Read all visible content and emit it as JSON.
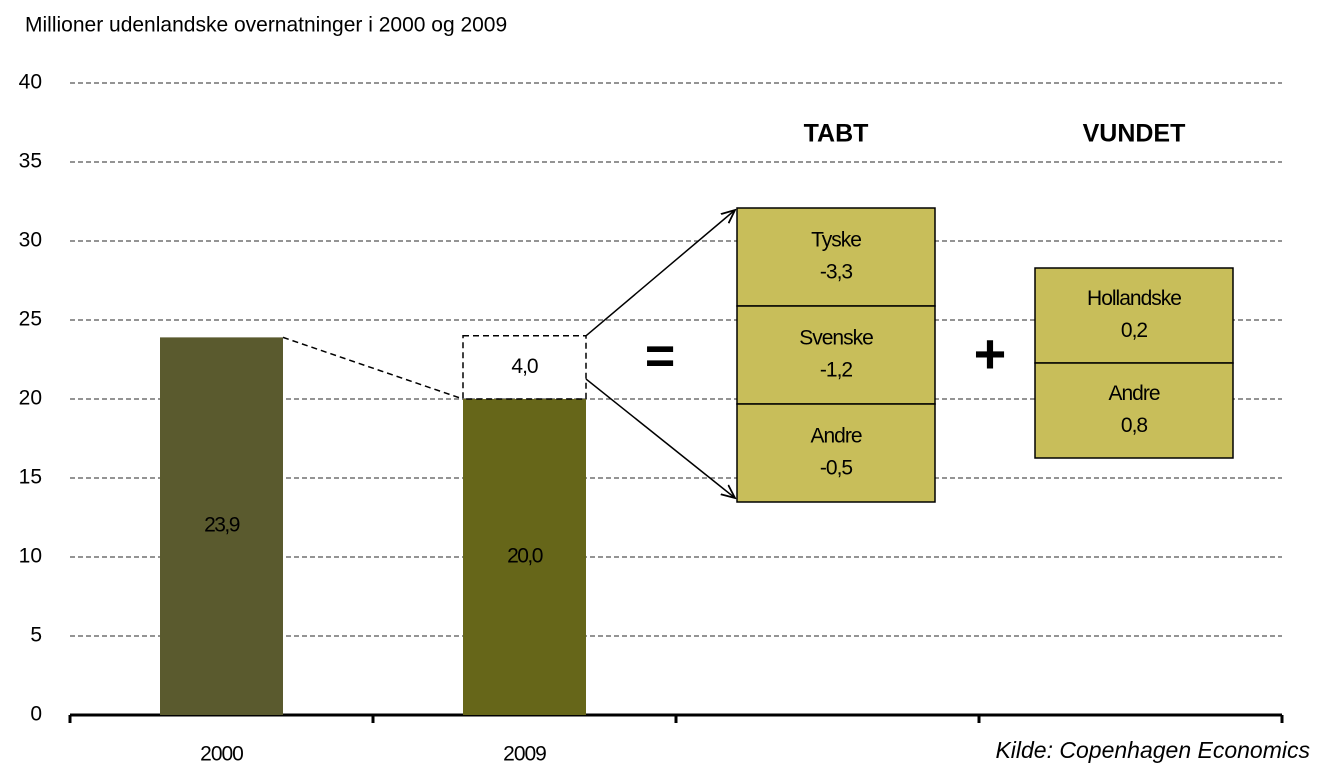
{
  "chart_data": {
    "type": "bar",
    "title": "Millioner udenlandske overnatninger i 2000 og 2009",
    "categories": [
      "2000",
      "2009"
    ],
    "values": [
      23.9,
      20.0
    ],
    "value_labels": [
      "23,9",
      "20,0"
    ],
    "colors": [
      "#5a5a2e",
      "#666619"
    ],
    "ylim": [
      0,
      40
    ],
    "yticks": [
      0,
      5,
      10,
      15,
      20,
      25,
      30,
      35,
      40
    ],
    "grid": true,
    "difference": {
      "value": 4.0,
      "label": "4,0"
    },
    "operators": [
      "=",
      "+"
    ],
    "breakdown": [
      {
        "title": "TABT",
        "items": [
          {
            "name": "Tyske",
            "value": -3.3,
            "label": "-3,3"
          },
          {
            "name": "Svenske",
            "value": -1.2,
            "label": "-1,2"
          },
          {
            "name": "Andre",
            "value": -0.5,
            "label": "-0,5"
          }
        ]
      },
      {
        "title": "VUNDET",
        "items": [
          {
            "name": "Hollandske",
            "value": 0.2,
            "label": "0,2"
          },
          {
            "name": "Andre",
            "value": 0.8,
            "label": "0,8"
          }
        ]
      }
    ],
    "box_color": "#c8be5a",
    "source": "Kilde: Copenhagen Economics"
  }
}
